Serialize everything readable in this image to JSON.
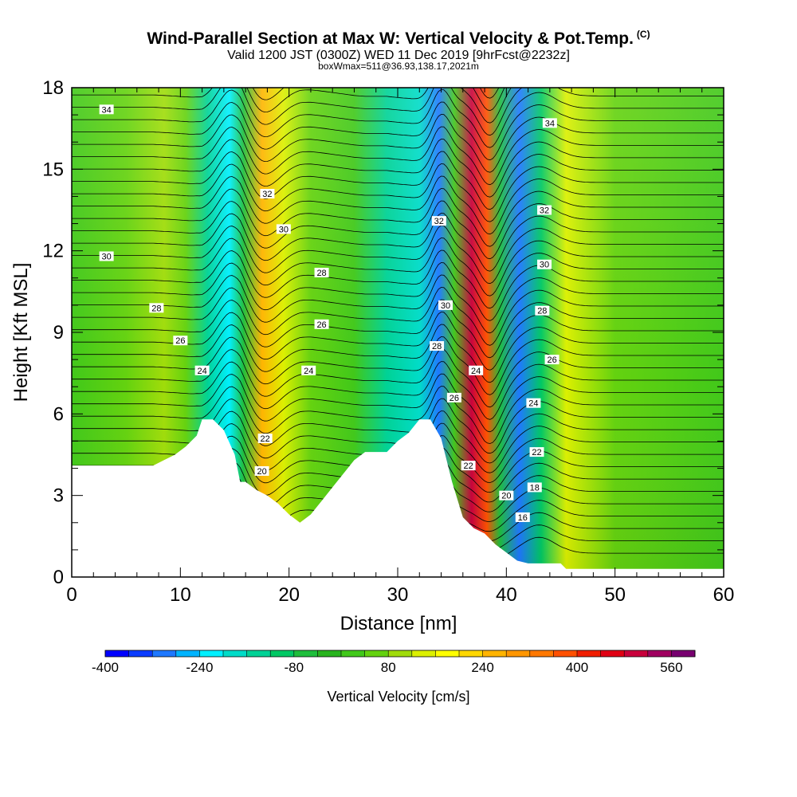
{
  "header": {
    "title": "Wind-Parallel Section at Max W: Vertical Velocity & Pot.Temp.",
    "copyright": "(C)",
    "subtitle": "Valid 1200 JST (0300Z) WED 11 Dec 2019 [9hrFcst@2232z]",
    "subtitle2": "boxWmax=511@36.93,138.17,2021m"
  },
  "chart_data": {
    "type": "heatmap",
    "xlabel": "Distance [nm]",
    "ylabel": "Height [Kft MSL]",
    "xlim": [
      0,
      60
    ],
    "ylim": [
      0,
      18
    ],
    "x_ticks": [
      0,
      10,
      20,
      30,
      40,
      50,
      60
    ],
    "y_ticks": [
      0,
      3,
      6,
      9,
      12,
      15,
      18
    ],
    "terrain": {
      "x": [
        0,
        7.5,
        8.5,
        9.5,
        10.5,
        11.5,
        12,
        13,
        14,
        15,
        15.5,
        16,
        17,
        18,
        19,
        20,
        21,
        22,
        23,
        24,
        25,
        26,
        27,
        28,
        29,
        30,
        31,
        32,
        33,
        34,
        35,
        36,
        37,
        38,
        39,
        40,
        41,
        42,
        45,
        45.5,
        53.5,
        54,
        60
      ],
      "height": [
        4.1,
        4.1,
        4.3,
        4.5,
        4.8,
        5.2,
        5.8,
        5.8,
        5.4,
        4.5,
        3.5,
        3.5,
        3.2,
        3.0,
        2.7,
        2.3,
        2.0,
        2.3,
        2.8,
        3.3,
        3.8,
        4.3,
        4.6,
        4.6,
        4.6,
        5.0,
        5.3,
        5.8,
        5.8,
        5.1,
        3.5,
        2.2,
        1.8,
        1.6,
        1.2,
        0.9,
        0.6,
        0.5,
        0.5,
        0.3,
        0.3,
        0.3,
        0.3
      ]
    },
    "w_field": {
      "units": "cm/s",
      "columns": [
        {
          "x": 0,
          "w": 20
        },
        {
          "x": 5,
          "w": 40
        },
        {
          "x": 8.5,
          "w": 80
        },
        {
          "x": 10.5,
          "w": 60
        },
        {
          "x": 12.5,
          "w": -160
        },
        {
          "x": 14.5,
          "w": -240
        },
        {
          "x": 15.8,
          "w": -60
        },
        {
          "x": 17.5,
          "w": 240
        },
        {
          "x": 19.5,
          "w": 120
        },
        {
          "x": 22,
          "w": 60
        },
        {
          "x": 26,
          "w": 0
        },
        {
          "x": 29,
          "w": -140
        },
        {
          "x": 32,
          "w": -200
        },
        {
          "x": 33.8,
          "w": -320
        },
        {
          "x": 35.2,
          "w": 0
        },
        {
          "x": 36.8,
          "w": 480
        },
        {
          "x": 38.2,
          "w": 380
        },
        {
          "x": 39.4,
          "w": -60
        },
        {
          "x": 41.2,
          "w": -300
        },
        {
          "x": 43.2,
          "w": -120
        },
        {
          "x": 45.5,
          "w": 120
        },
        {
          "x": 50,
          "w": 60
        },
        {
          "x": 60,
          "w": 20
        }
      ],
      "max_label": "boxWmax=511"
    },
    "theta_contours": {
      "units": "K (offset labels)",
      "labels": [
        {
          "text": "34",
          "x": 3.2,
          "y": 17.2
        },
        {
          "text": "34",
          "x": 44,
          "y": 16.7
        },
        {
          "text": "32",
          "x": 18,
          "y": 14.1
        },
        {
          "text": "32",
          "x": 43.5,
          "y": 13.5
        },
        {
          "text": "32",
          "x": 33.8,
          "y": 13.1
        },
        {
          "text": "30",
          "x": 3.2,
          "y": 11.8
        },
        {
          "text": "30",
          "x": 19.5,
          "y": 12.8
        },
        {
          "text": "30",
          "x": 43.5,
          "y": 11.5
        },
        {
          "text": "30",
          "x": 34.4,
          "y": 10.0
        },
        {
          "text": "28",
          "x": 7.8,
          "y": 9.9
        },
        {
          "text": "28",
          "x": 23,
          "y": 11.2
        },
        {
          "text": "28",
          "x": 43.3,
          "y": 9.8
        },
        {
          "text": "28",
          "x": 33.6,
          "y": 8.5
        },
        {
          "text": "26",
          "x": 10,
          "y": 8.7
        },
        {
          "text": "26",
          "x": 23,
          "y": 9.3
        },
        {
          "text": "26",
          "x": 44.2,
          "y": 8.0
        },
        {
          "text": "26",
          "x": 35.2,
          "y": 6.6
        },
        {
          "text": "24",
          "x": 12,
          "y": 7.6
        },
        {
          "text": "24",
          "x": 21.8,
          "y": 7.6
        },
        {
          "text": "24",
          "x": 37.2,
          "y": 7.6
        },
        {
          "text": "24",
          "x": 42.5,
          "y": 6.4
        },
        {
          "text": "22",
          "x": 17.8,
          "y": 5.1
        },
        {
          "text": "22",
          "x": 36.5,
          "y": 4.1
        },
        {
          "text": "22",
          "x": 42.8,
          "y": 4.6
        },
        {
          "text": "20",
          "x": 17.5,
          "y": 3.9
        },
        {
          "text": "20",
          "x": 40,
          "y": 3.0
        },
        {
          "text": "18",
          "x": 42.6,
          "y": 3.3
        },
        {
          "text": "16",
          "x": 41.5,
          "y": 2.2
        }
      ]
    },
    "colorbar": {
      "title": "Vertical Velocity [cm/s]",
      "tick_labels": [
        "-400",
        "-240",
        "-80",
        "80",
        "240",
        "400",
        "560"
      ],
      "colors": [
        "#0000ff",
        "#0a3cff",
        "#1e78ff",
        "#00b4ff",
        "#00f0ff",
        "#00dcc8",
        "#00d296",
        "#00c864",
        "#1ebe3c",
        "#28b41e",
        "#41c81a",
        "#64d20f",
        "#a0dc0a",
        "#dcf000",
        "#ffff00",
        "#ffd700",
        "#ffb400",
        "#ff9600",
        "#ff7800",
        "#ff5000",
        "#f01e00",
        "#e00014",
        "#c8003c",
        "#a00060",
        "#780070"
      ]
    }
  }
}
